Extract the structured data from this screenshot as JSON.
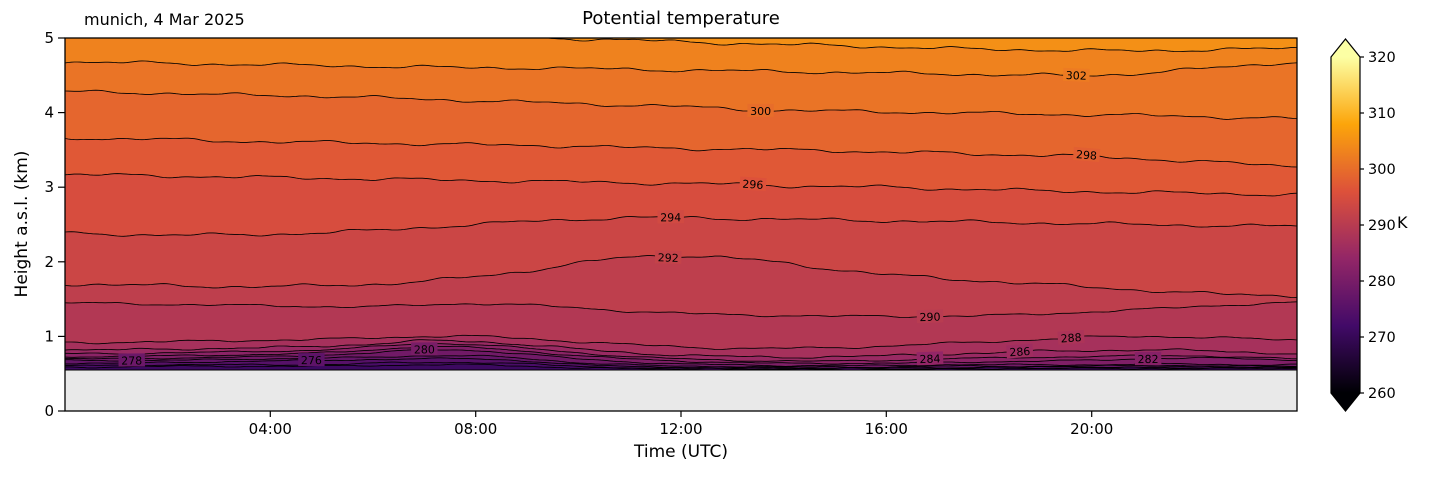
{
  "title": "Potential temperature",
  "annotation": "munich, 4 Mar 2025",
  "xlabel": "Time (UTC)",
  "ylabel": "Height a.s.l. (km)",
  "colors": {
    "background": "#ffffff",
    "ground": "#e9e9e9",
    "contour_line": "#000000",
    "spine": "#000000"
  },
  "colorbar": {
    "label": "K",
    "vmin": 260,
    "vmax": 320,
    "extend": "both",
    "ticks": [
      260,
      270,
      280,
      290,
      300,
      310,
      320
    ]
  },
  "x_ticks": [
    {
      "hour": 4,
      "label": "04:00"
    },
    {
      "hour": 8,
      "label": "08:00"
    },
    {
      "hour": 12,
      "label": "12:00"
    },
    {
      "hour": 16,
      "label": "16:00"
    },
    {
      "hour": 20,
      "label": "20:00"
    }
  ],
  "y_ticks": [
    0,
    1,
    2,
    3,
    4,
    5
  ],
  "chart_data": {
    "type": "heatmap",
    "subtype": "filled-contour-time-height",
    "time_axis": {
      "start_hour": 0,
      "end_hour": 24,
      "samples_per_level": 25
    },
    "y_range_km": [
      0,
      5
    ],
    "surface_km": 0.55,
    "contour_interval_K": 2,
    "colormap_stops": [
      [
        0.0,
        "#000004"
      ],
      [
        0.2,
        "#420a68"
      ],
      [
        0.4,
        "#932667"
      ],
      [
        0.6,
        "#dd513a"
      ],
      [
        0.8,
        "#fca50a"
      ],
      [
        1.0,
        "#fcffa4"
      ]
    ],
    "levels": [
      {
        "value": 272,
        "heights_km": [
          0.59,
          0.59,
          0.6,
          0.6,
          0.6,
          0.6,
          0.61,
          0.62,
          0.62,
          0.6,
          0.58,
          0.57,
          0.56,
          0.56,
          0.56,
          0.56,
          0.56,
          0.56,
          0.57,
          0.57,
          0.57,
          0.57,
          0.57,
          0.57,
          0.57
        ]
      },
      {
        "value": 274,
        "heights_km": [
          0.61,
          0.61,
          0.62,
          0.62,
          0.62,
          0.62,
          0.64,
          0.65,
          0.65,
          0.63,
          0.6,
          0.58,
          0.57,
          0.57,
          0.57,
          0.57,
          0.57,
          0.57,
          0.58,
          0.58,
          0.58,
          0.58,
          0.58,
          0.58,
          0.58
        ]
      },
      {
        "value": 276,
        "heights_km": [
          0.64,
          0.64,
          0.65,
          0.66,
          0.67,
          0.68,
          0.69,
          0.7,
          0.7,
          0.67,
          0.62,
          0.6,
          0.59,
          0.58,
          0.58,
          0.58,
          0.58,
          0.58,
          0.59,
          0.59,
          0.59,
          0.59,
          0.59,
          0.59,
          0.59
        ]
      },
      {
        "value": 278,
        "heights_km": [
          0.68,
          0.68,
          0.68,
          0.69,
          0.7,
          0.71,
          0.72,
          0.74,
          0.74,
          0.7,
          0.65,
          0.62,
          0.6,
          0.6,
          0.59,
          0.59,
          0.59,
          0.6,
          0.6,
          0.6,
          0.6,
          0.61,
          0.61,
          0.6,
          0.6
        ]
      },
      {
        "value": 280,
        "heights_km": [
          0.7,
          0.7,
          0.71,
          0.72,
          0.73,
          0.75,
          0.78,
          0.82,
          0.81,
          0.76,
          0.7,
          0.66,
          0.63,
          0.62,
          0.61,
          0.61,
          0.61,
          0.62,
          0.62,
          0.62,
          0.62,
          0.63,
          0.63,
          0.62,
          0.62
        ]
      },
      {
        "value": 282,
        "heights_km": [
          0.73,
          0.73,
          0.74,
          0.75,
          0.76,
          0.78,
          0.82,
          0.86,
          0.85,
          0.8,
          0.74,
          0.7,
          0.67,
          0.65,
          0.64,
          0.64,
          0.64,
          0.65,
          0.66,
          0.67,
          0.68,
          0.7,
          0.71,
          0.7,
          0.68
        ]
      },
      {
        "value": 284,
        "heights_km": [
          0.77,
          0.77,
          0.78,
          0.79,
          0.8,
          0.82,
          0.86,
          0.9,
          0.89,
          0.84,
          0.78,
          0.73,
          0.7,
          0.68,
          0.67,
          0.67,
          0.68,
          0.7,
          0.71,
          0.72,
          0.73,
          0.74,
          0.74,
          0.72,
          0.7
        ]
      },
      {
        "value": 286,
        "heights_km": [
          0.82,
          0.82,
          0.83,
          0.84,
          0.85,
          0.87,
          0.9,
          0.94,
          0.93,
          0.89,
          0.83,
          0.78,
          0.75,
          0.73,
          0.72,
          0.73,
          0.74,
          0.76,
          0.78,
          0.8,
          0.81,
          0.82,
          0.81,
          0.79,
          0.77
        ]
      },
      {
        "value": 288,
        "heights_km": [
          0.92,
          0.92,
          0.93,
          0.94,
          0.95,
          0.96,
          0.98,
          1.0,
          1.0,
          0.97,
          0.93,
          0.89,
          0.86,
          0.84,
          0.84,
          0.85,
          0.87,
          0.9,
          0.93,
          0.96,
          0.99,
          1.0,
          0.99,
          0.97,
          0.95
        ]
      },
      {
        "value": 290,
        "heights_km": [
          1.45,
          1.44,
          1.43,
          1.42,
          1.41,
          1.4,
          1.4,
          1.42,
          1.44,
          1.42,
          1.38,
          1.34,
          1.31,
          1.29,
          1.28,
          1.27,
          1.27,
          1.27,
          1.28,
          1.3,
          1.33,
          1.36,
          1.4,
          1.43,
          1.45
        ]
      },
      {
        "value": 292,
        "heights_km": [
          1.7,
          1.69,
          1.68,
          1.67,
          1.67,
          1.68,
          1.7,
          1.74,
          1.8,
          1.88,
          1.98,
          2.06,
          2.08,
          2.05,
          1.98,
          1.9,
          1.83,
          1.78,
          1.74,
          1.7,
          1.66,
          1.62,
          1.58,
          1.56,
          1.55
        ]
      },
      {
        "value": 294,
        "heights_km": [
          2.38,
          2.37,
          2.36,
          2.36,
          2.37,
          2.39,
          2.42,
          2.46,
          2.5,
          2.54,
          2.57,
          2.59,
          2.59,
          2.58,
          2.57,
          2.56,
          2.55,
          2.54,
          2.53,
          2.52,
          2.51,
          2.5,
          2.49,
          2.48,
          2.48
        ]
      },
      {
        "value": 296,
        "heights_km": [
          3.17,
          3.16,
          3.15,
          3.14,
          3.13,
          3.12,
          3.11,
          3.1,
          3.09,
          3.08,
          3.07,
          3.06,
          3.05,
          3.04,
          3.02,
          3.01,
          3.0,
          2.98,
          2.97,
          2.95,
          2.94,
          2.93,
          2.92,
          2.91,
          2.9
        ]
      },
      {
        "value": 298,
        "heights_km": [
          3.66,
          3.65,
          3.64,
          3.62,
          3.61,
          3.6,
          3.59,
          3.58,
          3.57,
          3.56,
          3.55,
          3.53,
          3.52,
          3.51,
          3.5,
          3.49,
          3.47,
          3.46,
          3.44,
          3.43,
          3.41,
          3.38,
          3.35,
          3.31,
          3.28
        ]
      },
      {
        "value": 300,
        "heights_km": [
          4.28,
          4.27,
          4.26,
          4.24,
          4.23,
          4.22,
          4.2,
          4.18,
          4.16,
          4.14,
          4.12,
          4.1,
          4.08,
          4.05,
          4.03,
          4.02,
          4.01,
          4.0,
          3.99,
          3.98,
          3.97,
          3.96,
          3.95,
          3.93,
          3.92
        ]
      },
      {
        "value": 302,
        "heights_km": [
          4.68,
          4.67,
          4.66,
          4.65,
          4.64,
          4.63,
          4.62,
          4.61,
          4.6,
          4.6,
          4.59,
          4.58,
          4.57,
          4.56,
          4.55,
          4.54,
          4.53,
          4.52,
          4.51,
          4.5,
          4.5,
          4.53,
          4.58,
          4.63,
          4.68
        ]
      },
      {
        "value": 304,
        "heights_km": [
          5.12,
          5.12,
          5.1,
          5.08,
          5.06,
          5.05,
          5.04,
          5.03,
          5.02,
          5.01,
          4.99,
          4.97,
          4.95,
          4.93,
          4.91,
          4.9,
          4.88,
          4.86,
          4.85,
          4.84,
          4.83,
          4.83,
          4.84,
          4.85,
          4.86
        ]
      }
    ],
    "contour_labels": [
      {
        "value": 278,
        "hour": 1.3
      },
      {
        "value": 276,
        "hour": 4.8
      },
      {
        "value": 280,
        "hour": 7.0
      },
      {
        "value": 292,
        "hour": 11.75
      },
      {
        "value": 294,
        "hour": 11.8
      },
      {
        "value": 296,
        "hour": 13.4
      },
      {
        "value": 300,
        "hour": 13.55
      },
      {
        "value": 284,
        "hour": 16.85
      },
      {
        "value": 290,
        "hour": 16.85
      },
      {
        "value": 286,
        "hour": 18.6
      },
      {
        "value": 288,
        "hour": 19.6
      },
      {
        "value": 302,
        "hour": 19.7
      },
      {
        "value": 298,
        "hour": 19.9
      },
      {
        "value": 282,
        "hour": 21.1
      }
    ]
  }
}
